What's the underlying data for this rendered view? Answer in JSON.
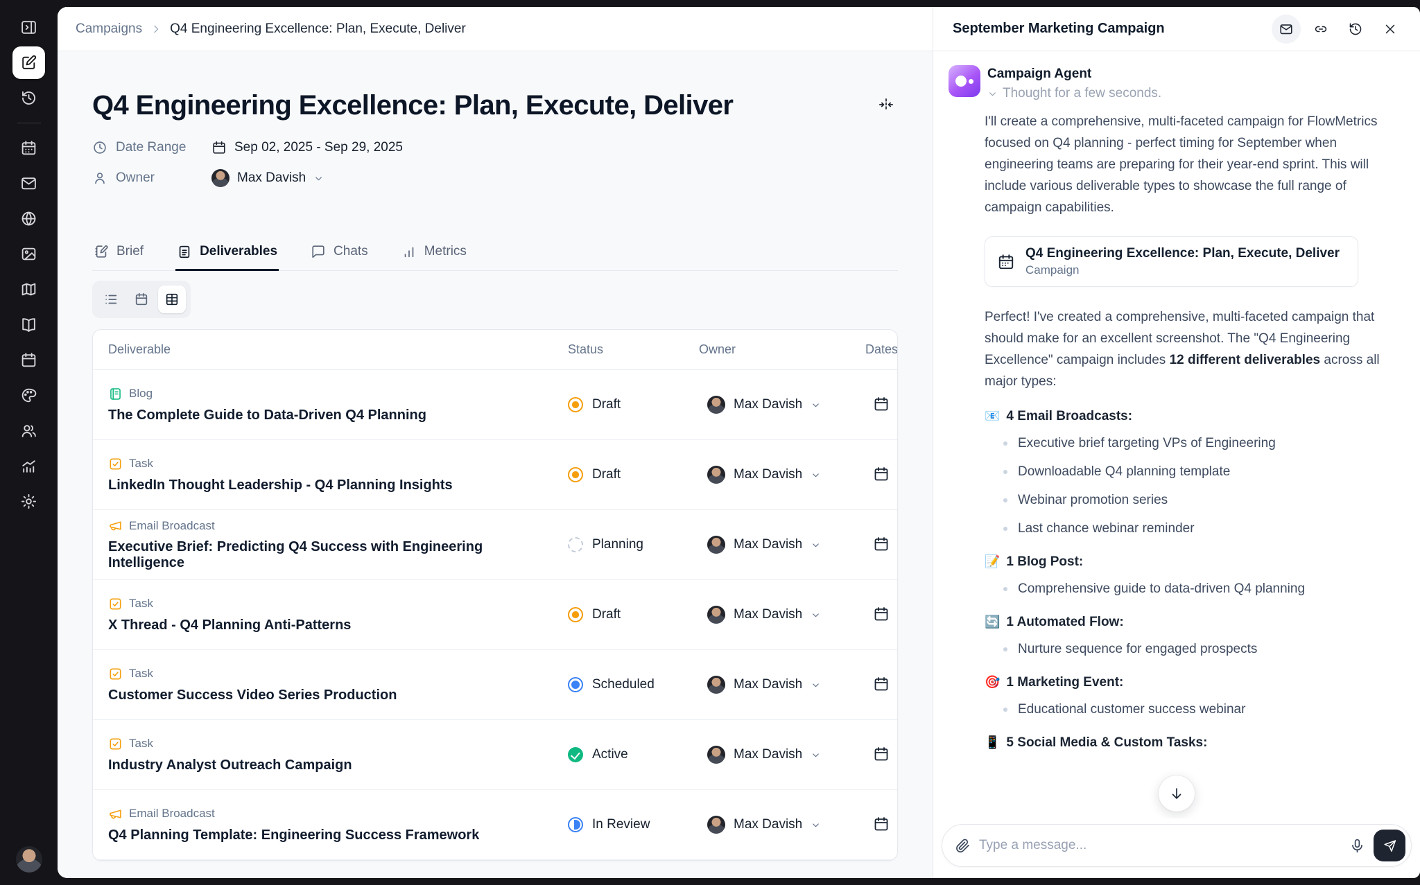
{
  "sidebar": {
    "icons": [
      "panel-toggle",
      "compose",
      "history",
      "calendar-days",
      "mail",
      "globe",
      "image",
      "map",
      "book-open",
      "calendar",
      "palette",
      "users",
      "bar-chart",
      "settings",
      "user-avatar"
    ],
    "active": "compose"
  },
  "breadcrumb": {
    "parent": "Campaigns",
    "separator": "›",
    "current": "Q4 Engineering Excellence: Plan, Execute, Deliver"
  },
  "page": {
    "title": "Q4 Engineering Excellence: Plan, Execute, Deliver",
    "date_range_label": "Date Range",
    "date_range_value": "Sep 02, 2025 - Sep 29, 2025",
    "owner_label": "Owner",
    "owner_value": "Max Davish"
  },
  "tabs": [
    {
      "label": "Brief"
    },
    {
      "label": "Deliverables"
    },
    {
      "label": "Chats"
    },
    {
      "label": "Metrics"
    }
  ],
  "active_tab": "Deliverables",
  "view_toggle": {
    "options": [
      "list",
      "calendar",
      "table"
    ],
    "active": "table"
  },
  "table": {
    "columns": [
      "Deliverable",
      "Status",
      "Owner",
      "Dates"
    ],
    "rows": [
      {
        "type_label": "Blog",
        "type_kind": "blog",
        "title": "The Complete Guide to Data-Driven Q4 Planning",
        "status_label": "Draft",
        "status_kind": "draft",
        "owner": "Max Davish"
      },
      {
        "type_label": "Task",
        "type_kind": "task",
        "title": "LinkedIn Thought Leadership - Q4 Planning Insights",
        "status_label": "Draft",
        "status_kind": "draft",
        "owner": "Max Davish"
      },
      {
        "type_label": "Email Broadcast",
        "type_kind": "email",
        "title": "Executive Brief: Predicting Q4 Success with Engineering Intelligence",
        "status_label": "Planning",
        "status_kind": "planning",
        "owner": "Max Davish"
      },
      {
        "type_label": "Task",
        "type_kind": "task",
        "title": "X Thread - Q4 Planning Anti-Patterns",
        "status_label": "Draft",
        "status_kind": "draft",
        "owner": "Max Davish"
      },
      {
        "type_label": "Task",
        "type_kind": "task",
        "title": "Customer Success Video Series Production",
        "status_label": "Scheduled",
        "status_kind": "scheduled",
        "owner": "Max Davish"
      },
      {
        "type_label": "Task",
        "type_kind": "task",
        "title": "Industry Analyst Outreach Campaign",
        "status_label": "Active",
        "status_kind": "active",
        "owner": "Max Davish"
      },
      {
        "type_label": "Email Broadcast",
        "type_kind": "email",
        "title": "Q4 Planning Template: Engineering Success Framework",
        "status_label": "In Review",
        "status_kind": "inreview",
        "owner": "Max Davish"
      }
    ]
  },
  "chat": {
    "title": "September Marketing Campaign",
    "header_icons": [
      "mail-icon",
      "link-icon",
      "history-icon",
      "close-icon"
    ],
    "agent_name": "Campaign Agent",
    "thought": "Thought for a few seconds.",
    "p1": "I'll create a comprehensive, multi-faceted campaign for FlowMetrics focused on Q4 planning - perfect timing for September when engineering teams are preparing for their year-end sprint. This will include various deliverable types to showcase the full range of campaign capabilities.",
    "card": {
      "title": "Q4 Engineering Excellence: Plan, Execute, Deliver",
      "subtitle": "Campaign"
    },
    "p2_before": "Perfect! I've created a comprehensive, multi-faceted campaign that should make for an excellent screenshot. The \"Q4 Engineering Excellence\" campaign includes ",
    "p2_bold": "12 different deliverables",
    "p2_after": " across all major types:",
    "sections": [
      {
        "emoji": "📧",
        "heading": "4 Email Broadcasts:",
        "bullets": [
          {
            "text": "Executive brief targeting VPs of Engineering"
          },
          {
            "text": "Downloadable Q4 planning template"
          },
          {
            "text": "Webinar promotion series"
          },
          {
            "text": "Last chance webinar reminder"
          }
        ]
      },
      {
        "emoji": "📝",
        "heading": "1 Blog Post:",
        "bullets": [
          {
            "text": "Comprehensive guide to data-driven Q4 planning"
          }
        ]
      },
      {
        "emoji": "🔄",
        "heading": "1 Automated Flow:",
        "bullets": [
          {
            "text": "Nurture sequence for engaged prospects"
          }
        ]
      },
      {
        "emoji": "🎯",
        "heading": "1 Marketing Event:",
        "bullets": [
          {
            "text": "Educational customer success webinar"
          }
        ]
      },
      {
        "emoji": "📱",
        "heading": "5 Social Media & Custom Tasks:",
        "bullets": []
      }
    ],
    "input_placeholder": "Type a message..."
  },
  "colors": {
    "status_draft": "#f59e0b",
    "status_planning": "#cbd5e1",
    "status_scheduled": "#3b82f6",
    "status_active": "#10b981",
    "status_inreview": "#3b82f6",
    "type_blog": "#10b981",
    "type_task": "#f59e0b",
    "type_email": "#f59e0b",
    "agent_gradient_start": "#d8b4fe",
    "agent_gradient_end": "#7c3aed",
    "send_button": "#1e2430",
    "sidebar_bg": "#151418"
  }
}
